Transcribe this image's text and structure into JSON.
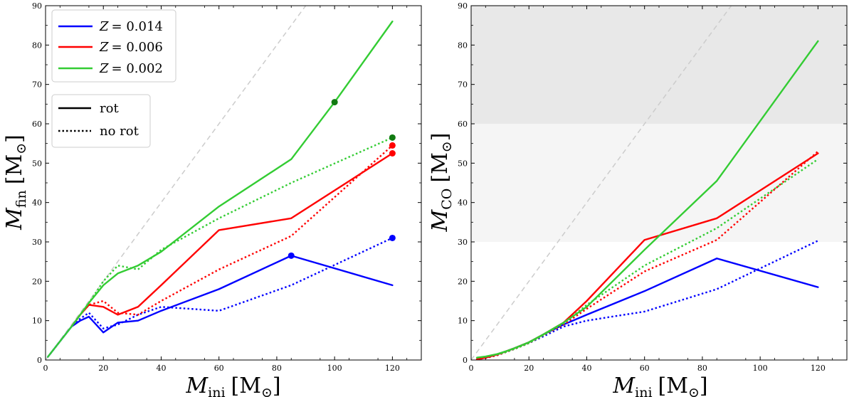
{
  "chart_data": [
    {
      "type": "line",
      "panel": "left",
      "xlabel": {
        "main": "M",
        "sub": "ini",
        "unit": "[M",
        "unit_sub": "⊙",
        "close": "]"
      },
      "ylabel": {
        "main": "M",
        "sub": "fin",
        "unit": "[M",
        "unit_sub": "⊙",
        "close": "]"
      },
      "xlim": [
        0,
        130
      ],
      "ylim": [
        0,
        90
      ],
      "xticks": [
        "0",
        "20",
        "40",
        "60",
        "80",
        "100",
        "120"
      ],
      "yticks": [
        "0",
        "10",
        "20",
        "30",
        "40",
        "50",
        "60",
        "70",
        "80",
        "90"
      ],
      "reference_line": {
        "name": "one-to-one",
        "color": "#cccccc",
        "style": "dashed"
      },
      "shaded_bands": [],
      "legend_metallicity": [
        {
          "label": "Z = 0.014",
          "z_symbol": "Z",
          "z_value": "= 0.014",
          "color": "#0000ff"
        },
        {
          "label": "Z = 0.006",
          "z_symbol": "Z",
          "z_value": "= 0.006",
          "color": "#ff0000"
        },
        {
          "label": "Z = 0.002",
          "z_symbol": "Z",
          "z_value": "= 0.002",
          "color": "#33cc33"
        }
      ],
      "legend_style": [
        {
          "label": "rot",
          "style": "solid"
        },
        {
          "label": "no rot",
          "style": "dotted"
        }
      ],
      "series": [
        {
          "name": "Z=0.014 rot",
          "color": "#0000ff",
          "style": "solid",
          "x": [
            0.8,
            9,
            12,
            15,
            20,
            25,
            32,
            40,
            60,
            85,
            120
          ],
          "y": [
            0.8,
            8.5,
            10,
            11,
            7,
            9.5,
            10,
            12.5,
            18,
            26.5,
            19
          ]
        },
        {
          "name": "Z=0.014 no rot",
          "color": "#0000ff",
          "style": "dotted",
          "x": [
            0.8,
            9,
            12,
            15,
            20,
            25,
            32,
            40,
            60,
            85,
            120
          ],
          "y": [
            0.8,
            8.5,
            10.5,
            12,
            8,
            9,
            11.5,
            13.5,
            12.5,
            19,
            31
          ]
        },
        {
          "name": "Z=0.006 rot",
          "color": "#ff0000",
          "style": "solid",
          "x": [
            9,
            12,
            15,
            20,
            25,
            32,
            40,
            60,
            85,
            120
          ],
          "y": [
            8.5,
            11.5,
            14,
            13.5,
            11.5,
            13.5,
            19,
            33,
            36,
            52.5
          ]
        },
        {
          "name": "Z=0.006 no rot",
          "color": "#ff0000",
          "style": "dotted",
          "x": [
            9,
            12,
            15,
            20,
            25,
            32,
            40,
            60,
            85,
            120
          ],
          "y": [
            8.5,
            11.5,
            14,
            15,
            12,
            11.5,
            15,
            23,
            31.5,
            54.5
          ]
        },
        {
          "name": "Z=0.002 rot",
          "color": "#33cc33",
          "style": "solid",
          "x": [
            0.8,
            9,
            12,
            15,
            20,
            25,
            32,
            40,
            60,
            85,
            100,
            120
          ],
          "y": [
            0.8,
            8.5,
            11.5,
            14.5,
            19,
            22,
            24,
            27.5,
            39,
            51,
            65.5,
            86
          ]
        },
        {
          "name": "Z=0.002 no rot",
          "color": "#33cc33",
          "style": "dotted",
          "x": [
            9,
            12,
            15,
            20,
            25,
            32,
            40,
            60,
            85,
            120
          ],
          "y": [
            8.5,
            11.5,
            14.5,
            20,
            24,
            23,
            28,
            36,
            45,
            56.5
          ]
        }
      ],
      "markers": [
        {
          "name": "marker-blue-85",
          "x": 85,
          "y": 26.5,
          "color": "#0000ff"
        },
        {
          "name": "marker-blue-120",
          "x": 120,
          "y": 31,
          "color": "#0000ff"
        },
        {
          "name": "marker-red-120-rot",
          "x": 120,
          "y": 52.5,
          "color": "#ff0000"
        },
        {
          "name": "marker-red-120-norot",
          "x": 120,
          "y": 54.5,
          "color": "#ff0000"
        },
        {
          "name": "marker-green-100",
          "x": 100,
          "y": 65.5,
          "color": "#117a11"
        },
        {
          "name": "marker-green-120",
          "x": 120,
          "y": 56.5,
          "color": "#117a11"
        }
      ]
    },
    {
      "type": "line",
      "panel": "right",
      "xlabel": {
        "main": "M",
        "sub": "ini",
        "unit": "[M",
        "unit_sub": "⊙",
        "close": "]"
      },
      "ylabel": {
        "main": "M",
        "sub": "CO",
        "unit": "[M",
        "unit_sub": "⊙",
        "close": "]"
      },
      "xlim": [
        0,
        130
      ],
      "ylim": [
        0,
        90
      ],
      "xticks": [
        "0",
        "20",
        "40",
        "60",
        "80",
        "100",
        "120"
      ],
      "yticks": [
        "0",
        "10",
        "20",
        "30",
        "40",
        "50",
        "60",
        "70",
        "80",
        "90"
      ],
      "reference_line": {
        "name": "one-to-one",
        "color": "#cccccc",
        "style": "dashed"
      },
      "shaded_bands": [
        {
          "y0": 60,
          "y1": 90,
          "color": "#e8e8e8"
        },
        {
          "y0": 30,
          "y1": 60,
          "color": "#f5f5f5"
        }
      ],
      "series": [
        {
          "name": "Z=0.014 rot",
          "color": "#0000ff",
          "style": "solid",
          "x": [
            2,
            5,
            9,
            12,
            15,
            20,
            25,
            32,
            40,
            60,
            85,
            120
          ],
          "y": [
            0.2,
            0.6,
            1.4,
            2.2,
            3,
            4.5,
            6.5,
            9,
            11.5,
            17.5,
            25.8,
            18.5
          ]
        },
        {
          "name": "Z=0.014 no rot",
          "color": "#0000ff",
          "style": "dotted",
          "x": [
            2,
            5,
            9,
            12,
            15,
            20,
            25,
            32,
            40,
            60,
            85,
            120
          ],
          "y": [
            0.2,
            0.5,
            1.2,
            2,
            2.8,
            4.3,
            6,
            8.5,
            10,
            12.3,
            18,
            30.3
          ]
        },
        {
          "name": "Z=0.006 rot",
          "color": "#ff0000",
          "style": "solid",
          "x": [
            2,
            5,
            9,
            12,
            15,
            20,
            25,
            32,
            40,
            60,
            85,
            120
          ],
          "y": [
            0.2,
            0.6,
            1.4,
            2.2,
            3,
            4.5,
            6.5,
            9.5,
            15,
            30.5,
            36,
            52.5
          ]
        },
        {
          "name": "Z=0.006 no rot",
          "color": "#ff0000",
          "style": "dotted",
          "x": [
            2,
            5,
            9,
            12,
            15,
            20,
            25,
            32,
            40,
            60,
            85,
            120
          ],
          "y": [
            0.2,
            0.5,
            1.2,
            2,
            2.8,
            4.3,
            6.3,
            9,
            13,
            22.5,
            30.5,
            53
          ]
        },
        {
          "name": "Z=0.002 rot",
          "color": "#33cc33",
          "style": "solid",
          "x": [
            2,
            5,
            9,
            12,
            15,
            20,
            25,
            32,
            40,
            60,
            85,
            120
          ],
          "y": [
            0.6,
            0.9,
            1.5,
            2.2,
            3,
            4.5,
            6.5,
            9.5,
            13.5,
            28,
            45.5,
            81
          ]
        },
        {
          "name": "Z=0.002 no rot",
          "color": "#33cc33",
          "style": "dotted",
          "x": [
            2,
            5,
            9,
            12,
            15,
            20,
            25,
            32,
            40,
            60,
            85,
            120
          ],
          "y": [
            0.6,
            0.8,
            1.4,
            2,
            2.8,
            4.3,
            6.3,
            9.3,
            14,
            24,
            33.5,
            51
          ]
        }
      ],
      "markers": []
    }
  ]
}
